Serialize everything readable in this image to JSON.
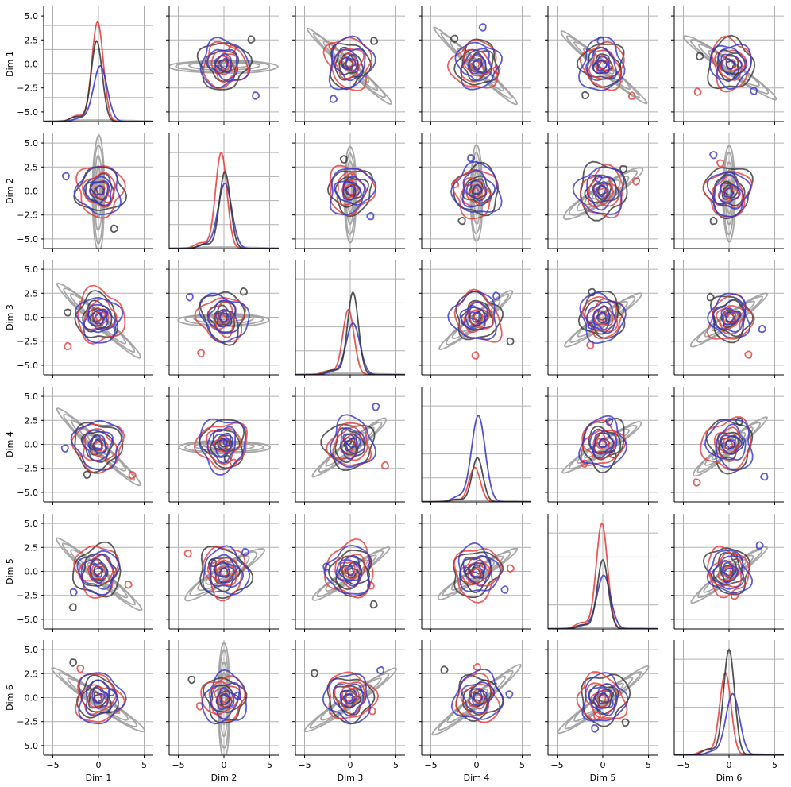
{
  "chart_data": {
    "type": "pairplot",
    "description_free": true,
    "dimensions": [
      "Dim 1",
      "Dim 2",
      "Dim 3",
      "Dim 4",
      "Dim 5",
      "Dim 6"
    ],
    "xlim": [
      -6,
      6
    ],
    "ylim": [
      -6,
      6
    ],
    "x_ticks": [
      -5,
      0,
      5
    ],
    "y_ticks": [
      -5.0,
      -2.5,
      0.0,
      2.5,
      5.0
    ],
    "y_tick_labels": [
      "−5.0",
      "−2.5",
      "0.0",
      "2.5",
      "5.0"
    ],
    "x_tick_labels": [
      "−5",
      "0",
      "5"
    ],
    "grid": true,
    "diagonal": "kde",
    "off_diagonal": "kde-contour",
    "series": [
      {
        "name": "",
        "color": "#9e9e9e",
        "role": "reference"
      },
      {
        "name": "",
        "color": "#333333"
      },
      {
        "name": "",
        "color": "#e53935"
      },
      {
        "name": "",
        "color": "#3333cc"
      }
    ],
    "reference_correlation": [
      [
        1.0,
        0.0,
        -0.85,
        -0.88,
        -0.8,
        -0.65
      ],
      [
        0.0,
        1.0,
        0.0,
        0.0,
        0.6,
        0.0
      ],
      [
        -0.85,
        0.0,
        1.0,
        0.75,
        0.65,
        0.65
      ],
      [
        -0.88,
        0.0,
        0.75,
        1.0,
        0.6,
        0.75
      ],
      [
        -0.8,
        0.6,
        0.65,
        0.6,
        1.0,
        0.7
      ],
      [
        -0.65,
        0.0,
        0.65,
        0.75,
        0.7,
        1.0
      ]
    ],
    "reference_spread": [
      [
        1,
        [
          6,
          0.6
        ],
        [
          6,
          0.5
        ],
        [
          6,
          0.5
        ],
        [
          6,
          0.5
        ],
        [
          6,
          0.6
        ]
      ],
      [
        [
          0.6,
          6
        ],
        1,
        [
          0.6,
          5
        ],
        [
          0.6,
          5
        ],
        [
          5,
          0.8
        ],
        [
          0.6,
          5
        ]
      ],
      [
        [
          6,
          0.6
        ],
        [
          5,
          0.6
        ],
        1,
        [
          5,
          0.6
        ],
        [
          5,
          0.6
        ],
        [
          5,
          0.6
        ]
      ],
      [
        [
          6,
          0.6
        ],
        [
          5,
          0.6
        ],
        [
          5,
          0.6
        ],
        1,
        [
          5,
          0.6
        ],
        [
          5,
          0.6
        ]
      ],
      [
        [
          6,
          0.6
        ],
        [
          5,
          0.8
        ],
        [
          5,
          0.6
        ],
        [
          5,
          0.6
        ],
        1,
        [
          5,
          0.6
        ]
      ],
      [
        [
          6,
          0.6
        ],
        [
          0.6,
          6
        ],
        [
          6,
          0.6
        ],
        [
          6,
          0.6
        ],
        [
          6,
          0.6
        ],
        1
      ]
    ],
    "diag_peaks": [
      {
        "dark": 4.2,
        "red": 5.2,
        "blue": 2.9,
        "dark_mu": -0.2,
        "red_mu": -0.1,
        "blue_mu": 0.2
      },
      {
        "dark": 4.0,
        "red": 5.0,
        "blue": 3.4,
        "dark_mu": 0.1,
        "red_mu": -0.3,
        "blue_mu": 0.1
      },
      {
        "dark": 4.3,
        "red": 3.4,
        "blue": 2.7,
        "dark_mu": 0.3,
        "red_mu": -0.2,
        "blue_mu": 0.3
      },
      {
        "dark": 2.3,
        "red": 1.8,
        "blue": 4.5,
        "dark_mu": 0.1,
        "red_mu": -0.2,
        "blue_mu": 0.2
      },
      {
        "dark": 3.6,
        "red": 5.5,
        "blue": 2.8,
        "dark_mu": 0.0,
        "red_mu": -0.1,
        "blue_mu": 0.1
      },
      {
        "dark": 5.5,
        "red": 4.3,
        "blue": 3.2,
        "dark_mu": 0.0,
        "red_mu": -0.4,
        "blue_mu": 0.4
      }
    ]
  }
}
